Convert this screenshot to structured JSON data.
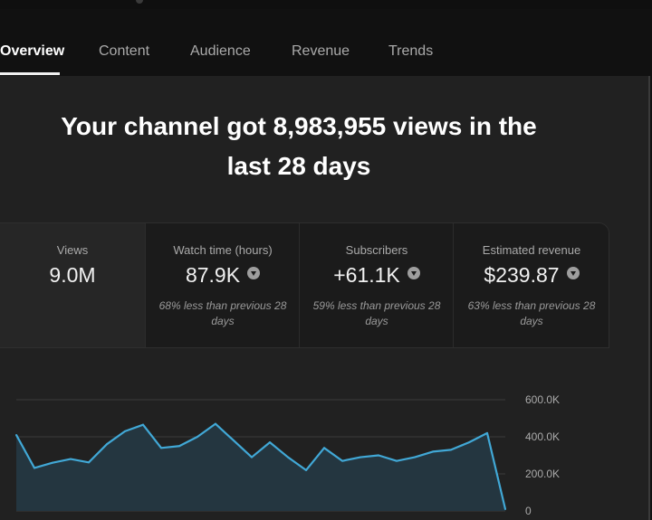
{
  "tabs": [
    {
      "label": "Overview",
      "active": true
    },
    {
      "label": "Content",
      "active": false
    },
    {
      "label": "Audience",
      "active": false
    },
    {
      "label": "Revenue",
      "active": false
    },
    {
      "label": "Trends",
      "active": false
    }
  ],
  "headline": {
    "line1": "Your channel got 8,983,955 views in the",
    "line2": "last 28 days"
  },
  "metrics": [
    {
      "label": "Views",
      "value": "9.0M",
      "trend_icon": "",
      "comparison": ""
    },
    {
      "label": "Watch time (hours)",
      "value": "87.9K",
      "trend_icon": "down-arrow-icon",
      "comparison": "68% less than previous 28 days"
    },
    {
      "label": "Subscribers",
      "value": "+61.1K",
      "trend_icon": "down-arrow-icon",
      "comparison": "59% less than previous 28 days"
    },
    {
      "label": "Estimated revenue",
      "value": "$239.87",
      "trend_icon": "down-arrow-icon",
      "comparison": "63% less than previous 28 days"
    }
  ],
  "colors": {
    "background": "#111111",
    "panel": "#212121",
    "card": "#1b1b1b",
    "line": "#41a8d6",
    "area": "#243640"
  },
  "chart_data": {
    "type": "area",
    "title": "",
    "xlabel": "",
    "ylabel": "",
    "ylim": [
      0,
      600000
    ],
    "yticks": [
      "0",
      "200.0K",
      "400.0K",
      "600.0K"
    ],
    "ytick_values": [
      0,
      200000,
      400000,
      600000
    ],
    "grid": true,
    "series": [
      {
        "values": [
          410000,
          232000,
          260000,
          280000,
          262000,
          360000,
          430000,
          465000,
          340000,
          350000,
          400000,
          470000,
          380000,
          290000,
          370000,
          290000,
          220000,
          340000,
          270000,
          290000,
          300000,
          270000,
          290000,
          320000,
          330000,
          370000,
          420000,
          10000
        ]
      }
    ]
  }
}
